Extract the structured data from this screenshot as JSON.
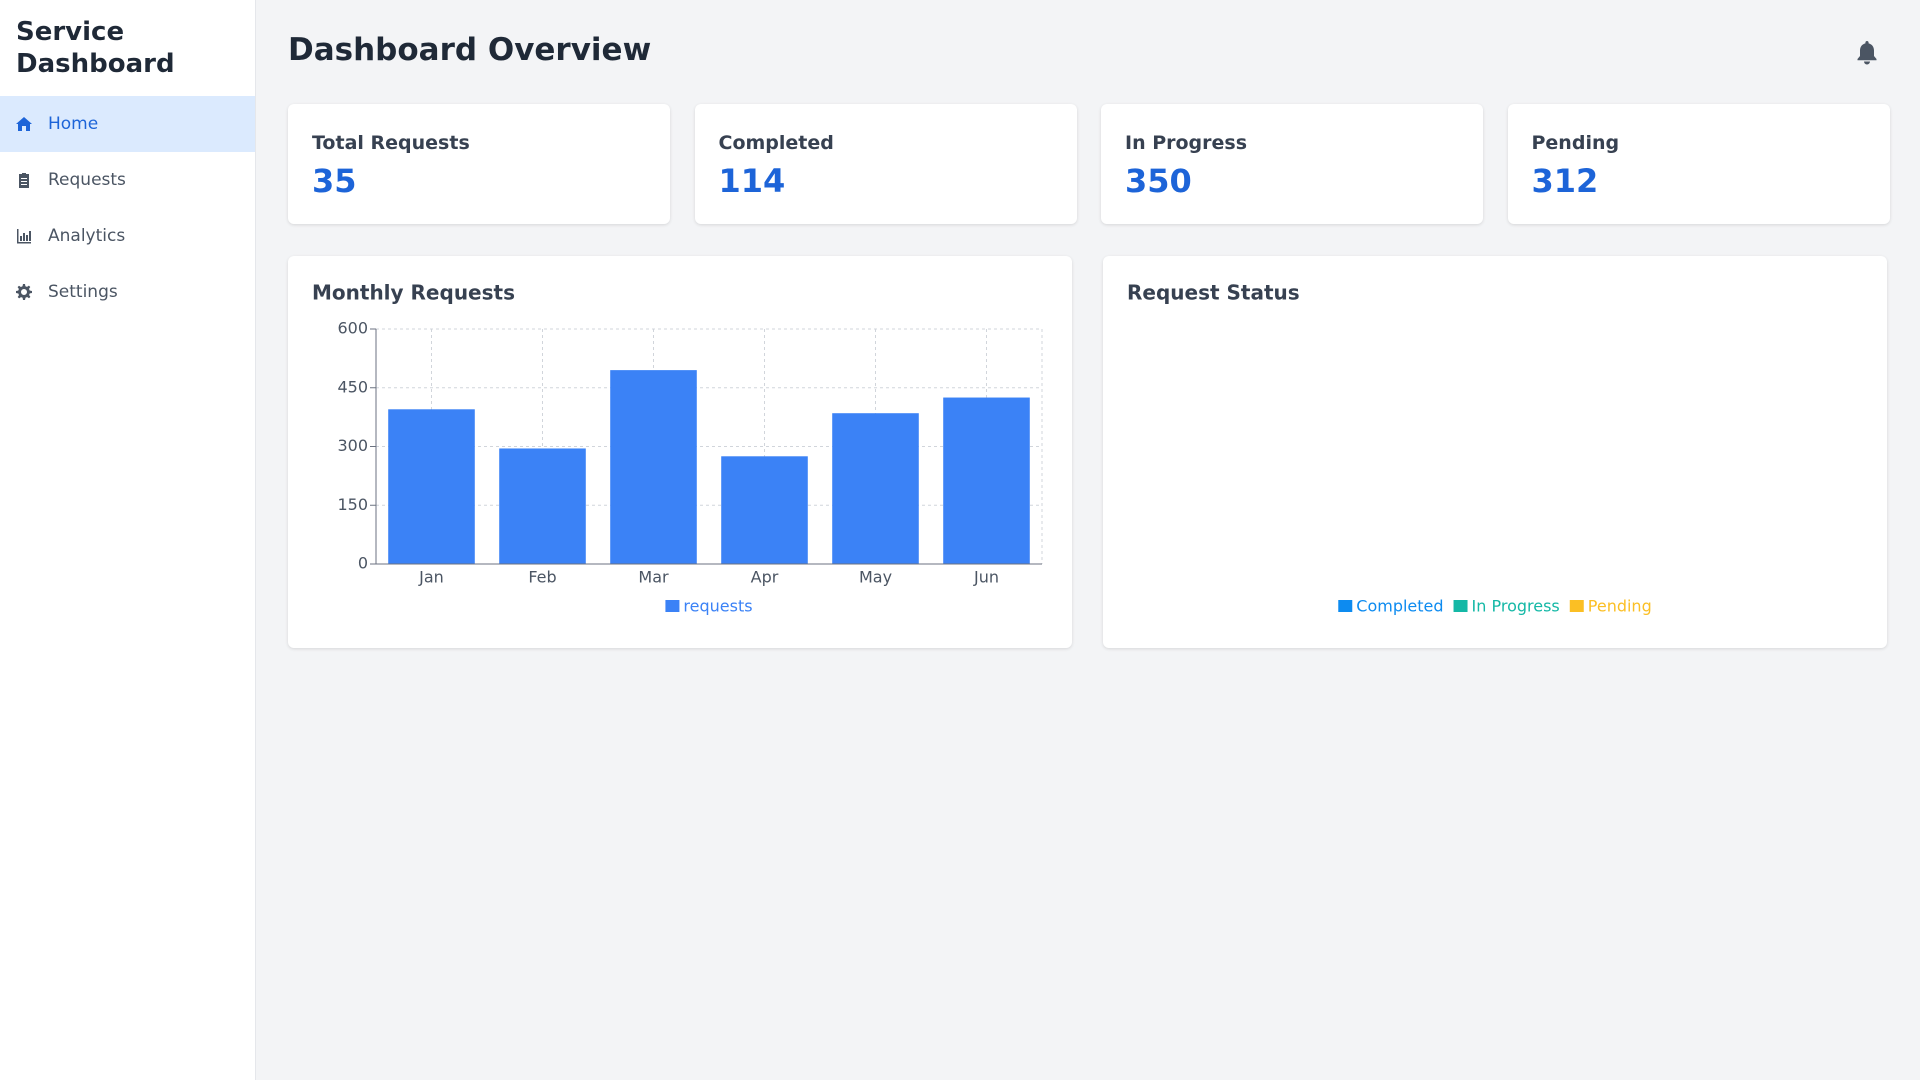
{
  "sidebar": {
    "title": "Service Dashboard",
    "nav": [
      "Home",
      "Requests",
      "Analytics",
      "Settings"
    ],
    "active": 0
  },
  "header": {
    "title": "Dashboard Overview"
  },
  "stats": [
    {
      "label": "Total Requests",
      "value": 35
    },
    {
      "label": "Completed",
      "value": 114
    },
    {
      "label": "In Progress",
      "value": 350
    },
    {
      "label": "Pending",
      "value": 312
    }
  ],
  "chart_data": [
    {
      "type": "bar",
      "title": "Monthly Requests",
      "categories": [
        "Jan",
        "Feb",
        "Mar",
        "Apr",
        "May",
        "Jun"
      ],
      "series": [
        {
          "name": "requests",
          "color": "#3b82f6",
          "values": [
            395,
            295,
            495,
            275,
            385,
            425
          ]
        }
      ],
      "ylim": [
        0,
        600
      ],
      "yticks": [
        0,
        150,
        300,
        450,
        600
      ],
      "grid": true,
      "legend": "bottom"
    },
    {
      "type": "pie",
      "title": "Request Status",
      "categories": [
        "Completed",
        "In Progress",
        "Pending"
      ],
      "colors": [
        "#0d8bf0",
        "#14b8a6",
        "#fbbf24"
      ],
      "legend": "bottom"
    }
  ]
}
